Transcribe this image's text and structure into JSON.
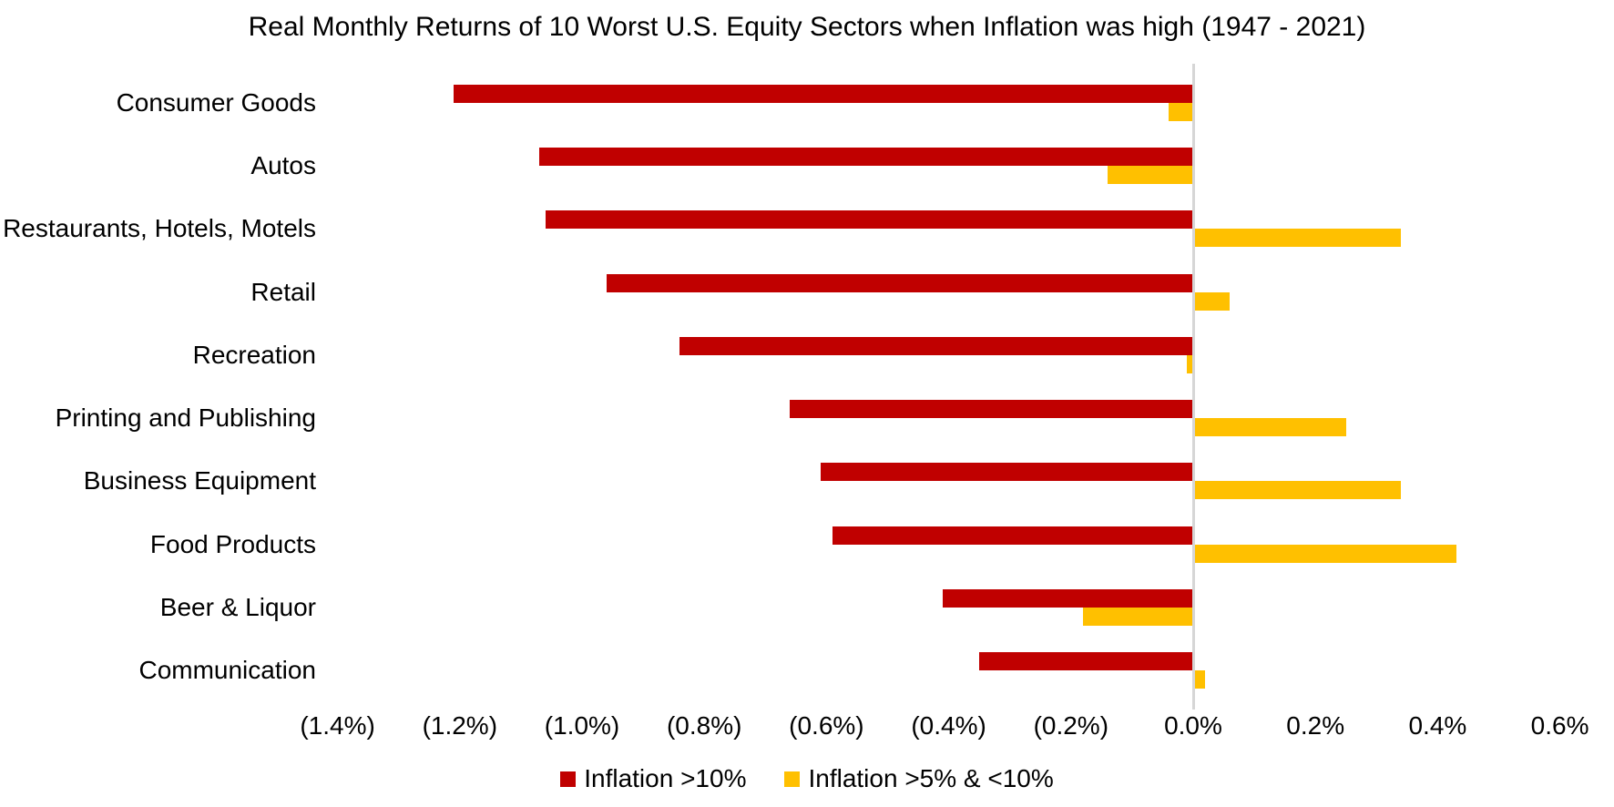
{
  "title": "Real Monthly Returns of 10 Worst U.S. Equity Sectors when Inflation was high (1947 - 2021)",
  "chart_data": {
    "type": "bar",
    "orientation": "horizontal",
    "title": "Real Monthly Returns of 10 Worst U.S. Equity Sectors when Inflation was high (1947 - 2021)",
    "value_unit": "percent (real monthly return)",
    "categories": [
      "Consumer Goods",
      "Autos",
      "Restaurants, Hotels, Motels",
      "Retail",
      "Recreation",
      "Printing and Publishing",
      "Business Equipment",
      "Food Products",
      "Beer & Liquor",
      "Communication"
    ],
    "series": [
      {
        "name": "Inflation >10%",
        "key": "inflation-gt10",
        "color": "#C00000",
        "values": [
          -1.21,
          -1.07,
          -1.06,
          -0.96,
          -0.84,
          -0.66,
          -0.61,
          -0.59,
          -0.41,
          -0.35
        ]
      },
      {
        "name": "Inflation >5% & <10%",
        "key": "inflation-5to10",
        "color": "#FFC000",
        "values": [
          -0.04,
          -0.14,
          0.34,
          0.06,
          -0.01,
          0.25,
          0.34,
          0.43,
          -0.18,
          0.02
        ]
      }
    ],
    "xlim": [
      -1.4,
      0.6
    ],
    "x_ticks": [
      {
        "value": -1.4,
        "label": "(1.4%)"
      },
      {
        "value": -1.2,
        "label": "(1.2%)"
      },
      {
        "value": -1.0,
        "label": "(1.0%)"
      },
      {
        "value": -0.8,
        "label": "(0.8%)"
      },
      {
        "value": -0.6,
        "label": "(0.6%)"
      },
      {
        "value": -0.4,
        "label": "(0.4%)"
      },
      {
        "value": -0.2,
        "label": "(0.2%)"
      },
      {
        "value": 0.0,
        "label": "0.0%"
      },
      {
        "value": 0.2,
        "label": "0.2%"
      },
      {
        "value": 0.4,
        "label": "0.4%"
      },
      {
        "value": 0.6,
        "label": "0.6%"
      }
    ],
    "grid": false,
    "legend_position": "bottom",
    "colors": {
      "background": "#FFFFFF",
      "text": "#000000",
      "zero_axis_line": "#D6D6D6"
    }
  }
}
